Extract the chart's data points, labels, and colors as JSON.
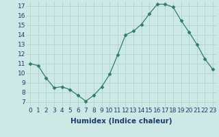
{
  "x": [
    0,
    1,
    2,
    3,
    4,
    5,
    6,
    7,
    8,
    9,
    10,
    11,
    12,
    13,
    14,
    15,
    16,
    17,
    18,
    19,
    20,
    21,
    22,
    23
  ],
  "y": [
    11.0,
    10.8,
    9.5,
    8.5,
    8.6,
    8.3,
    7.7,
    7.1,
    7.7,
    8.6,
    9.9,
    11.9,
    14.0,
    14.4,
    15.1,
    16.2,
    17.2,
    17.2,
    16.9,
    15.5,
    14.3,
    13.0,
    11.5,
    10.4
  ],
  "xlabel": "Humidex (Indice chaleur)",
  "xlim": [
    -0.5,
    23.5
  ],
  "ylim": [
    6.5,
    17.5
  ],
  "yticks": [
    7,
    8,
    9,
    10,
    11,
    12,
    13,
    14,
    15,
    16,
    17
  ],
  "xticks": [
    0,
    1,
    2,
    3,
    4,
    5,
    6,
    7,
    8,
    9,
    10,
    11,
    12,
    13,
    14,
    15,
    16,
    17,
    18,
    19,
    20,
    21,
    22,
    23
  ],
  "line_color": "#2d7d6e",
  "marker": "D",
  "marker_size": 2.5,
  "bg_color": "#cce9e5",
  "grid_color": "#aacfcc",
  "xlabel_fontsize": 7.5,
  "tick_fontsize": 6.5,
  "xlabel_color": "#1a3a6e",
  "tick_color": "#1a3a6e"
}
